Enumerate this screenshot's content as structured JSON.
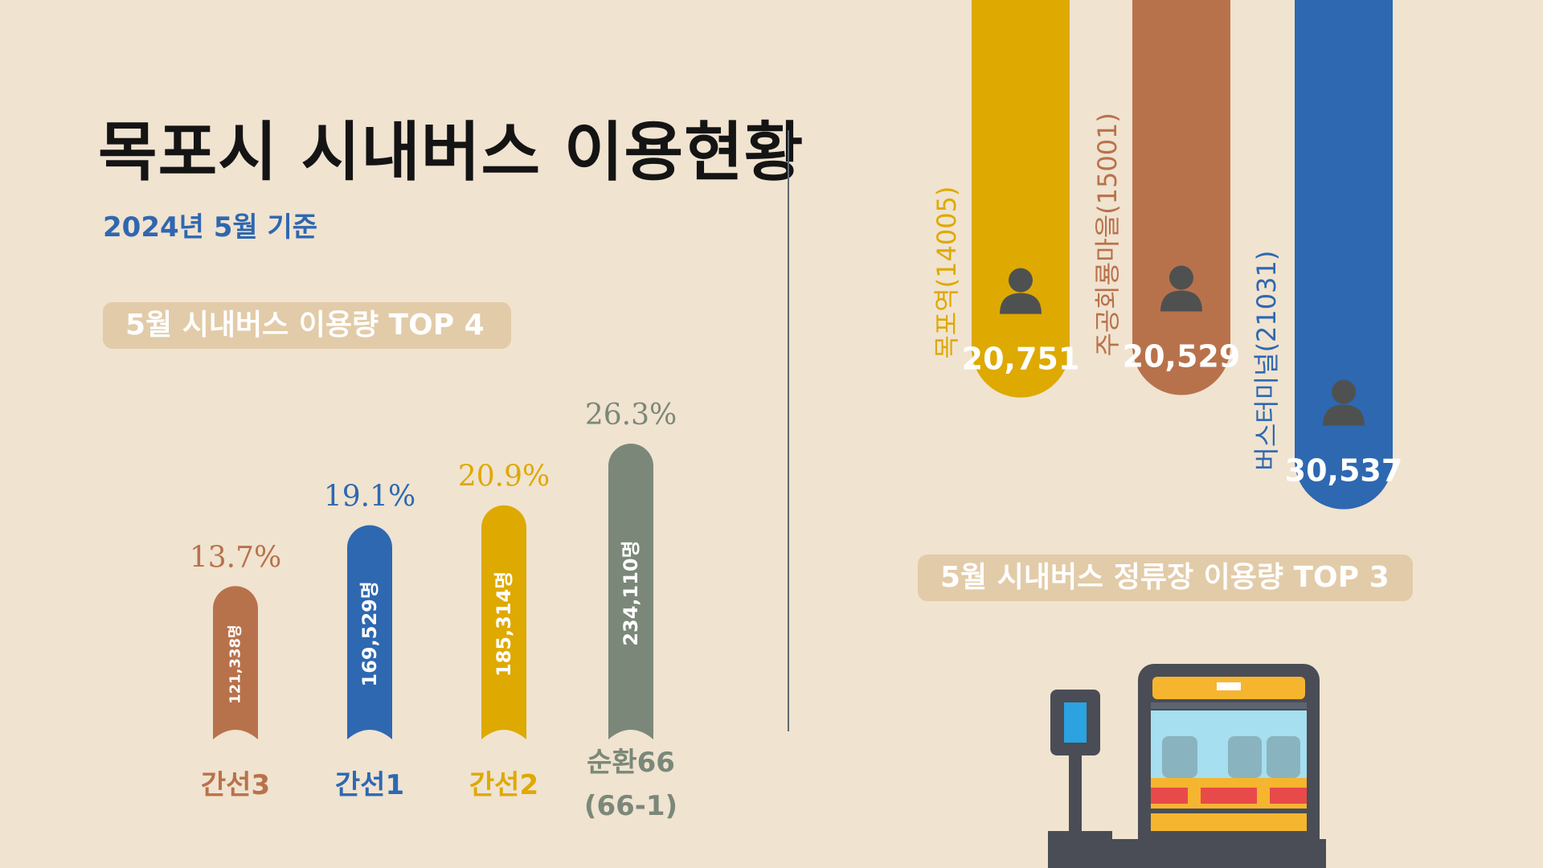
{
  "title": "목포시 시내버스 이용현황",
  "subtitle": "2024년 5월 기준",
  "colors": {
    "background": "#f0e3d0",
    "pill": "#e2cba8",
    "brown": "#b8724b",
    "blue": "#2e68b1",
    "yellow": "#dea900",
    "gray": "#7b8879",
    "dark": "#4a4d55"
  },
  "chart_data": [
    {
      "type": "bar",
      "title": "5월 시내버스 이용량 TOP 4",
      "categories": [
        "간선3",
        "간선1",
        "간선2",
        "순환66\n(66-1)"
      ],
      "values": [
        121338,
        169529,
        185314,
        234110
      ],
      "value_labels": [
        "121,338명",
        "169,529명",
        "185,314명",
        "234,110명"
      ],
      "shares": [
        "13.7%",
        "19.1%",
        "20.9%",
        "26.3%"
      ],
      "colors": [
        "#b8724b",
        "#2e68b1",
        "#dea900",
        "#7b8879"
      ]
    },
    {
      "type": "bar",
      "title": "5월 시내버스 정류장 이용량 TOP 3",
      "categories": [
        "목포역(14005)",
        "주공회룡마을(15001)",
        "버스터미널(21031)"
      ],
      "values": [
        20751,
        20529,
        30537
      ],
      "value_labels": [
        "20,751",
        "20,529",
        "30,537"
      ],
      "colors": [
        "#dea900",
        "#b8724b",
        "#2e68b1"
      ]
    }
  ],
  "icons": [
    "person-icon",
    "bus-stop-icon",
    "bus-icon"
  ]
}
